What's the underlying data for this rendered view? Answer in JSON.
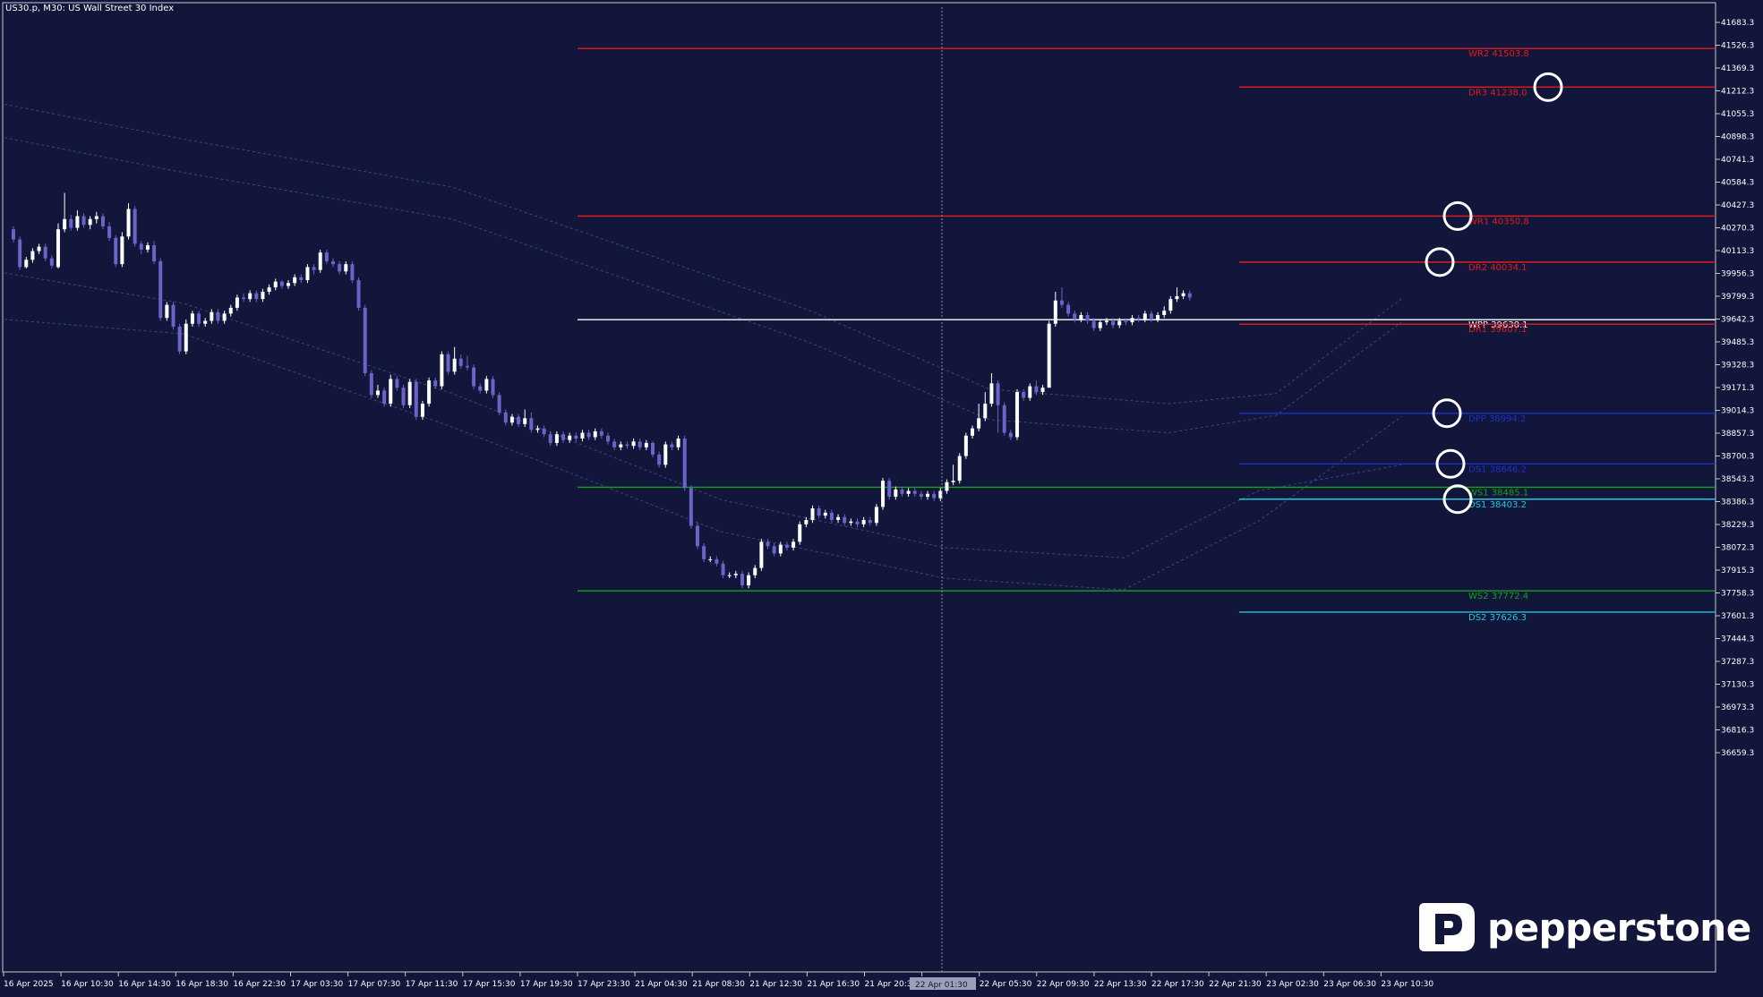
{
  "window": {
    "title": "US30.p, M30:  US Wall Street 30 Index"
  },
  "brand": {
    "name": "pepperstone"
  },
  "colors": {
    "background": "#12163a",
    "bull": "#ffffff",
    "bear": "#6b63c8",
    "axis_text": "#ffffff",
    "red": "#e21c1c",
    "green": "#15a11a",
    "blue": "#1b32c9",
    "cyan": "#23c7d9",
    "pivot": "#ffffff",
    "band": "#3d4680"
  },
  "chart_data": {
    "type": "candlestick",
    "title": "US30.p, M30:  US Wall Street 30 Index",
    "ylim": [
      36580,
      41760
    ],
    "y_ticks": [
      "41683.3",
      "41526.3",
      "41369.3",
      "41212.3",
      "41055.3",
      "40898.3",
      "40741.3",
      "40584.3",
      "40427.3",
      "40270.3",
      "40113.3",
      "39956.3",
      "39799.3",
      "39642.3",
      "39485.3",
      "39328.3",
      "39171.3",
      "39014.3",
      "38857.3",
      "38700.3",
      "38543.3",
      "38386.3",
      "38229.3",
      "38072.3",
      "37915.3",
      "37758.3",
      "37601.3",
      "37444.3",
      "37287.3",
      "37130.3",
      "36973.3",
      "36816.3",
      "36659.3"
    ],
    "x_ticks": [
      "16 Apr 2025",
      "16 Apr 10:30",
      "16 Apr 14:30",
      "16 Apr 18:30",
      "16 Apr 22:30",
      "17 Apr 03:30",
      "17 Apr 07:30",
      "17 Apr 11:30",
      "17 Apr 15:30",
      "17 Apr 19:30",
      "17 Apr 23:30",
      "21 Apr 04:30",
      "21 Apr 08:30",
      "21 Apr 12:30",
      "21 Apr 16:30",
      "21 Apr 20:30",
      "22 Apr 01:30",
      "22 Apr 05:30",
      "22 Apr 09:30",
      "22 Apr 13:30",
      "22 Apr 17:30",
      "22 Apr 21:30",
      "23 Apr 02:30",
      "23 Apr 06:30",
      "23 Apr 10:30"
    ],
    "crosshair_x_label": "22 Apr 01:30",
    "levels": [
      {
        "name": "WR2",
        "value": "41503.8",
        "color": "red",
        "span": "weekly"
      },
      {
        "name": "DR3",
        "value": "41238.0",
        "color": "red",
        "span": "daily"
      },
      {
        "name": "WR1",
        "value": "40350.8",
        "color": "red",
        "span": "weekly"
      },
      {
        "name": "DR2",
        "value": "40034.1",
        "color": "red",
        "span": "daily"
      },
      {
        "name": "WPP",
        "value": "39638.1",
        "color": "pivot",
        "span": "weekly"
      },
      {
        "name": "DR1",
        "value": "39607.1",
        "color": "red",
        "span": "daily"
      },
      {
        "name": "DPP",
        "value": "38994.2",
        "color": "blue",
        "span": "daily"
      },
      {
        "name": "DS1",
        "value": "38646.2",
        "color": "blue",
        "span": "daily"
      },
      {
        "name": "WS1",
        "value": "38485.1",
        "color": "green",
        "span": "weekly"
      },
      {
        "name": "DS1",
        "value": "38403.2",
        "color": "cyan",
        "span": "daily"
      },
      {
        "name": "WS2",
        "value": "37772.4",
        "color": "green",
        "span": "weekly"
      },
      {
        "name": "DS2",
        "value": "37626.3",
        "color": "cyan",
        "span": "daily"
      }
    ],
    "circles": [
      41238.0,
      40350.8,
      40034.1,
      38994.2,
      38646.2,
      38403.2
    ],
    "candles": [
      [
        40260,
        40190,
        40280,
        40170
      ],
      [
        40190,
        40000,
        40210,
        39980
      ],
      [
        40000,
        40050,
        40070,
        39990
      ],
      [
        40050,
        40110,
        40130,
        40030
      ],
      [
        40110,
        40140,
        40160,
        40090
      ],
      [
        40140,
        40060,
        40160,
        40040
      ],
      [
        40060,
        40010,
        40080,
        39990
      ],
      [
        40000,
        40260,
        40300,
        39990
      ],
      [
        40260,
        40330,
        40510,
        40240
      ],
      [
        40330,
        40270,
        40360,
        40250
      ],
      [
        40270,
        40350,
        40390,
        40250
      ],
      [
        40350,
        40290,
        40370,
        40270
      ],
      [
        40290,
        40330,
        40350,
        40260
      ],
      [
        40330,
        40350,
        40380,
        40300
      ],
      [
        40350,
        40280,
        40370,
        40260
      ],
      [
        40280,
        40200,
        40310,
        40180
      ],
      [
        40200,
        40020,
        40220,
        40000
      ],
      [
        40020,
        40210,
        40240,
        40000
      ],
      [
        40210,
        40400,
        40440,
        40190
      ],
      [
        40400,
        40160,
        40420,
        40140
      ],
      [
        40160,
        40120,
        40180,
        40090
      ],
      [
        40120,
        40150,
        40170,
        40100
      ],
      [
        40150,
        40040,
        40180,
        40020
      ],
      [
        40040,
        39650,
        40060,
        39630
      ],
      [
        39650,
        39740,
        39760,
        39630
      ],
      [
        39740,
        39590,
        39760,
        39570
      ],
      [
        39590,
        39420,
        39610,
        39400
      ],
      [
        39420,
        39610,
        39640,
        39400
      ],
      [
        39610,
        39680,
        39700,
        39590
      ],
      [
        39680,
        39610,
        39700,
        39590
      ],
      [
        39610,
        39630,
        39650,
        39590
      ],
      [
        39630,
        39690,
        39710,
        39610
      ],
      [
        39690,
        39630,
        39710,
        39610
      ],
      [
        39630,
        39680,
        39700,
        39610
      ],
      [
        39680,
        39720,
        39740,
        39660
      ],
      [
        39720,
        39790,
        39810,
        39700
      ],
      [
        39790,
        39780,
        39820,
        39760
      ],
      [
        39780,
        39820,
        39840,
        39760
      ],
      [
        39820,
        39780,
        39840,
        39760
      ],
      [
        39780,
        39830,
        39850,
        39760
      ],
      [
        39830,
        39860,
        39880,
        39810
      ],
      [
        39860,
        39900,
        39920,
        39840
      ],
      [
        39900,
        39870,
        39910,
        39850
      ],
      [
        39870,
        39890,
        39910,
        39850
      ],
      [
        39890,
        39930,
        39950,
        39870
      ],
      [
        39930,
        39910,
        39950,
        39890
      ],
      [
        39910,
        40000,
        40020,
        39890
      ],
      [
        40000,
        39980,
        40020,
        39950
      ],
      [
        39980,
        40100,
        40120,
        39960
      ],
      [
        40100,
        40040,
        40120,
        40020
      ],
      [
        40040,
        40020,
        40060,
        40000
      ],
      [
        40020,
        39970,
        40040,
        39950
      ],
      [
        39970,
        40020,
        40040,
        39950
      ],
      [
        40020,
        39910,
        40040,
        39890
      ],
      [
        39910,
        39720,
        39930,
        39700
      ],
      [
        39720,
        39270,
        39740,
        39250
      ],
      [
        39270,
        39120,
        39290,
        39100
      ],
      [
        39120,
        39150,
        39190,
        39100
      ],
      [
        39150,
        39060,
        39170,
        39040
      ],
      [
        39060,
        39230,
        39260,
        39040
      ],
      [
        39230,
        39170,
        39250,
        39150
      ],
      [
        39170,
        39050,
        39190,
        39030
      ],
      [
        39050,
        39210,
        39230,
        39030
      ],
      [
        39210,
        38970,
        39230,
        38950
      ],
      [
        38970,
        39060,
        39080,
        38950
      ],
      [
        39060,
        39220,
        39240,
        39040
      ],
      [
        39220,
        39180,
        39240,
        39160
      ],
      [
        39180,
        39400,
        39420,
        39160
      ],
      [
        39400,
        39280,
        39420,
        39260
      ],
      [
        39280,
        39370,
        39450,
        39260
      ],
      [
        39370,
        39320,
        39400,
        39300
      ],
      [
        39320,
        39310,
        39390,
        39290
      ],
      [
        39310,
        39180,
        39330,
        39160
      ],
      [
        39180,
        39150,
        39200,
        39130
      ],
      [
        39150,
        39230,
        39250,
        39130
      ],
      [
        39230,
        39120,
        39250,
        39100
      ],
      [
        39120,
        39000,
        39140,
        38980
      ],
      [
        39000,
        38930,
        39020,
        38910
      ],
      [
        38930,
        38970,
        38990,
        38910
      ],
      [
        38970,
        38920,
        38990,
        38900
      ],
      [
        38920,
        38960,
        39020,
        38900
      ],
      [
        38960,
        38880,
        39000,
        38860
      ],
      [
        38880,
        38890,
        38910,
        38860
      ],
      [
        38890,
        38850,
        38910,
        38830
      ],
      [
        38850,
        38790,
        38870,
        38770
      ],
      [
        38790,
        38850,
        38870,
        38770
      ],
      [
        38850,
        38810,
        38870,
        38790
      ],
      [
        38810,
        38840,
        38860,
        38790
      ],
      [
        38840,
        38820,
        38860,
        38800
      ],
      [
        38820,
        38860,
        38880,
        38800
      ],
      [
        38860,
        38830,
        38880,
        38810
      ],
      [
        38830,
        38870,
        38890,
        38810
      ],
      [
        38870,
        38840,
        38890,
        38820
      ],
      [
        38840,
        38800,
        38860,
        38780
      ],
      [
        38800,
        38760,
        38820,
        38740
      ],
      [
        38760,
        38780,
        38800,
        38740
      ],
      [
        38780,
        38770,
        38800,
        38750
      ],
      [
        38770,
        38800,
        38820,
        38750
      ],
      [
        38800,
        38760,
        38820,
        38740
      ],
      [
        38760,
        38790,
        38810,
        38740
      ],
      [
        38790,
        38710,
        38800,
        38690
      ],
      [
        38710,
        38640,
        38730,
        38620
      ],
      [
        38640,
        38780,
        38800,
        38620
      ],
      [
        38780,
        38760,
        38800,
        38740
      ],
      [
        38760,
        38820,
        38840,
        38740
      ],
      [
        38820,
        38480,
        38840,
        38460
      ],
      [
        38480,
        38220,
        38500,
        38200
      ],
      [
        38220,
        38080,
        38240,
        38060
      ],
      [
        38080,
        37990,
        38100,
        37970
      ],
      [
        37990,
        37990,
        38010,
        37970
      ],
      [
        37990,
        37960,
        38010,
        37940
      ],
      [
        37960,
        37880,
        37980,
        37860
      ],
      [
        37880,
        37880,
        37900,
        37860
      ],
      [
        37880,
        37890,
        37910,
        37860
      ],
      [
        37890,
        37810,
        37910,
        37790
      ],
      [
        37810,
        37880,
        37900,
        37790
      ],
      [
        37880,
        37930,
        37950,
        37860
      ],
      [
        37930,
        38110,
        38130,
        37910
      ],
      [
        38110,
        38080,
        38130,
        38060
      ],
      [
        38080,
        38030,
        38100,
        38010
      ],
      [
        38030,
        38090,
        38110,
        38010
      ],
      [
        38090,
        38070,
        38110,
        38050
      ],
      [
        38070,
        38110,
        38130,
        38050
      ],
      [
        38110,
        38230,
        38250,
        38090
      ],
      [
        38230,
        38260,
        38280,
        38210
      ],
      [
        38260,
        38340,
        38360,
        38240
      ],
      [
        38340,
        38290,
        38360,
        38270
      ],
      [
        38290,
        38310,
        38330,
        38270
      ],
      [
        38310,
        38260,
        38330,
        38240
      ],
      [
        38260,
        38280,
        38300,
        38240
      ],
      [
        38280,
        38240,
        38300,
        38220
      ],
      [
        38240,
        38250,
        38270,
        38220
      ],
      [
        38250,
        38230,
        38270,
        38210
      ],
      [
        38230,
        38260,
        38280,
        38210
      ],
      [
        38260,
        38240,
        38280,
        38220
      ],
      [
        38240,
        38350,
        38370,
        38220
      ],
      [
        38350,
        38530,
        38550,
        38330
      ],
      [
        38530,
        38420,
        38550,
        38400
      ],
      [
        38420,
        38470,
        38490,
        38400
      ],
      [
        38470,
        38440,
        38490,
        38420
      ],
      [
        38440,
        38460,
        38480,
        38420
      ],
      [
        38460,
        38440,
        38480,
        38420
      ],
      [
        38440,
        38420,
        38460,
        38400
      ],
      [
        38420,
        38440,
        38460,
        38400
      ],
      [
        38440,
        38410,
        38460,
        38390
      ],
      [
        38410,
        38460,
        38480,
        38390
      ],
      [
        38460,
        38520,
        38540,
        38440
      ],
      [
        38520,
        38530,
        38640,
        38500
      ],
      [
        38530,
        38700,
        38720,
        38510
      ],
      [
        38700,
        38840,
        38860,
        38680
      ],
      [
        38840,
        38890,
        38910,
        38820
      ],
      [
        38890,
        38960,
        39060,
        38870
      ],
      [
        38960,
        39060,
        39140,
        38940
      ],
      [
        39060,
        39200,
        39270,
        39040
      ],
      [
        39200,
        39050,
        39220,
        38860
      ],
      [
        39050,
        38860,
        39070,
        38840
      ],
      [
        38860,
        38830,
        38880,
        38810
      ],
      [
        38830,
        39140,
        39160,
        38810
      ],
      [
        39140,
        39100,
        39160,
        39080
      ],
      [
        39100,
        39180,
        39200,
        39080
      ],
      [
        39180,
        39140,
        39220,
        39120
      ],
      [
        39140,
        39170,
        39190,
        39120
      ],
      [
        39170,
        39610,
        39630,
        39580
      ],
      [
        39610,
        39770,
        39830,
        39590
      ],
      [
        39770,
        39740,
        39860,
        39720
      ],
      [
        39740,
        39680,
        39760,
        39660
      ],
      [
        39680,
        39640,
        39700,
        39620
      ],
      [
        39640,
        39670,
        39690,
        39620
      ],
      [
        39670,
        39630,
        39690,
        39610
      ],
      [
        39630,
        39580,
        39650,
        39560
      ],
      [
        39580,
        39620,
        39640,
        39560
      ],
      [
        39620,
        39630,
        39650,
        39600
      ],
      [
        39630,
        39600,
        39650,
        39580
      ],
      [
        39600,
        39630,
        39650,
        39580
      ],
      [
        39630,
        39620,
        39650,
        39600
      ],
      [
        39620,
        39650,
        39670,
        39600
      ],
      [
        39650,
        39640,
        39670,
        39620
      ],
      [
        39640,
        39680,
        39700,
        39620
      ],
      [
        39680,
        39640,
        39700,
        39620
      ],
      [
        39640,
        39670,
        39690,
        39620
      ],
      [
        39670,
        39700,
        39730,
        39650
      ],
      [
        39700,
        39780,
        39800,
        39680
      ],
      [
        39780,
        39800,
        39860,
        39760
      ],
      [
        39800,
        39820,
        39840,
        39780
      ],
      [
        39820,
        39790,
        39840,
        39770
      ]
    ],
    "bands": {
      "upper1": [
        [
          0,
          41120
        ],
        [
          200,
          40880
        ],
        [
          500,
          40550
        ],
        [
          900,
          39700
        ],
        [
          1100,
          39160
        ],
        [
          1300,
          39060
        ],
        [
          1420,
          39130
        ],
        [
          1560,
          39780
        ]
      ],
      "upper2": [
        [
          0,
          40890
        ],
        [
          200,
          40650
        ],
        [
          500,
          40330
        ],
        [
          900,
          39480
        ],
        [
          1100,
          38950
        ],
        [
          1300,
          38860
        ],
        [
          1420,
          38980
        ],
        [
          1560,
          39620
        ]
      ],
      "lower1": [
        [
          0,
          39640
        ],
        [
          200,
          39540
        ],
        [
          500,
          38900
        ],
        [
          800,
          38180
        ],
        [
          1050,
          37860
        ],
        [
          1250,
          37780
        ],
        [
          1400,
          38250
        ],
        [
          1560,
          38970
        ]
      ],
      "lower2": [
        [
          0,
          39960
        ],
        [
          200,
          39750
        ],
        [
          500,
          39130
        ],
        [
          800,
          38400
        ],
        [
          1050,
          38070
        ],
        [
          1250,
          38000
        ],
        [
          1400,
          38460
        ],
        [
          1560,
          38640
        ]
      ]
    }
  }
}
